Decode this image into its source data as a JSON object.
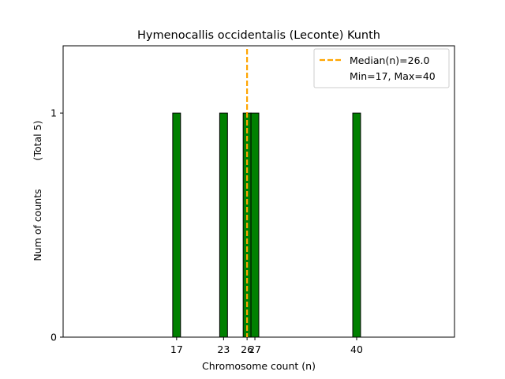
{
  "chart_data": {
    "type": "bar",
    "title": "Hymenocallis occidentalis (Leconte) Kunth",
    "xlabel": "Chromosome count (n)",
    "ylabel": "Num of counts",
    "ylabel_note": "(Total 5)",
    "xlim": [
      2.5,
      52.5
    ],
    "ylim": [
      0,
      1.3
    ],
    "x_ticks": [
      17,
      23,
      26,
      27,
      40
    ],
    "y_ticks": [
      0,
      1
    ],
    "bars": [
      {
        "x": 17,
        "count": 1
      },
      {
        "x": 23,
        "count": 1
      },
      {
        "x": 26,
        "count": 1
      },
      {
        "x": 27,
        "count": 1
      },
      {
        "x": 40,
        "count": 1
      }
    ],
    "median": 26.0,
    "min": 17,
    "max": 40,
    "baseline_extent": [
      2.5,
      44.5
    ],
    "legend": {
      "position": "top-right",
      "median_label": "Median(n)=26.0",
      "range_label": "Min=17, Max=40"
    },
    "colors": {
      "bar": "#008000",
      "bar_edge": "#000000",
      "median_line": "#FFA500"
    }
  }
}
